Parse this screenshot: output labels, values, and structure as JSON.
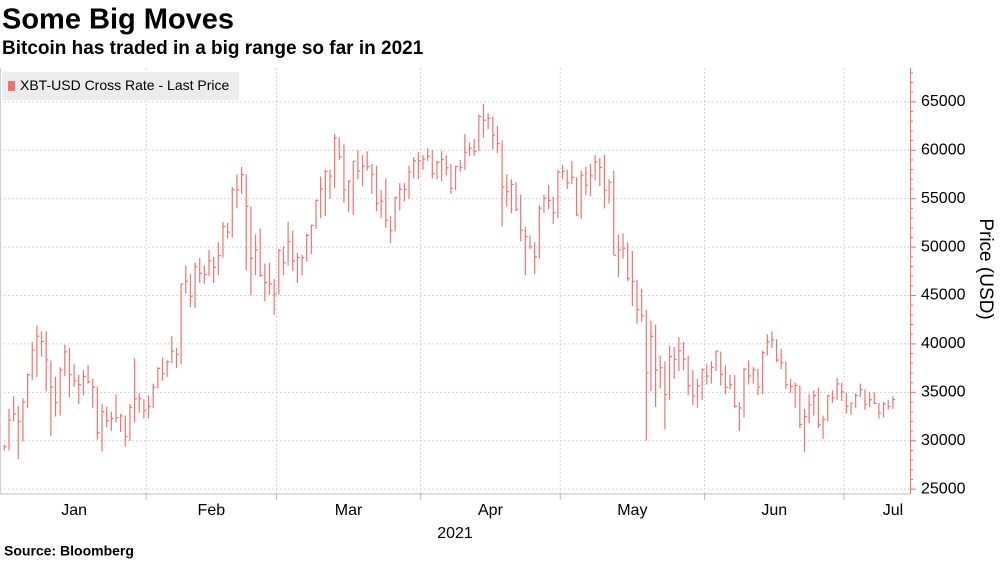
{
  "chart_data": {
    "type": "hlc",
    "title": "Some Big Moves",
    "subtitle": "Bitcoin has traded in a big range so far in 2021",
    "source": "Source: Bloomberg",
    "ylabel": "Price (USD)",
    "xlabel": "2021",
    "x_labels": [
      "Jan",
      "Feb",
      "Mar",
      "Apr",
      "May",
      "Jun",
      "Jul"
    ],
    "ylim": [
      24500,
      68500
    ],
    "yticks": [
      25000,
      30000,
      35000,
      40000,
      45000,
      50000,
      55000,
      60000,
      65000
    ],
    "grid": true,
    "legend": "top-left",
    "series": [
      {
        "name": "XBT-USD Cross Rate - Last Price",
        "color": "#ef7370",
        "high": [
          29600,
          33300,
          34600,
          33600,
          34400,
          36900,
          40200,
          41900,
          41300,
          41300,
          38300,
          36600,
          37600,
          39900,
          39600,
          37900,
          36800,
          37300,
          37800,
          36400,
          35600,
          33800,
          33500,
          33000,
          34800,
          32800,
          32600,
          33800,
          38500,
          34900,
          34300,
          34700,
          35900,
          37600,
          38600,
          38300,
          40800,
          39600,
          46200,
          48100,
          47200,
          48400,
          48900,
          48100,
          49700,
          49000,
          50500,
          52600,
          52500,
          56200,
          57500,
          58300,
          57500,
          54200,
          51300,
          51900,
          48300,
          48400,
          46700,
          49800,
          50100,
          52600,
          51700,
          49400,
          49200,
          51400,
          52300,
          54900,
          57300,
          58000,
          58000,
          61700,
          61300,
          60600,
          56900,
          58900,
          60000,
          59500,
          59900,
          58600,
          58400,
          55900,
          57100,
          53200,
          55200,
          56600,
          56600,
          58400,
          59300,
          59800,
          59500,
          60200,
          60000,
          58900,
          59900,
          59500,
          58600,
          58400,
          59000,
          61700,
          60800,
          61200,
          63700,
          64800,
          63800,
          63500,
          62500,
          61000,
          57500,
          57000,
          56700,
          55400,
          52100,
          51200,
          50500,
          54300,
          55400,
          56400,
          55200,
          58000,
          58500,
          58000,
          58900,
          57200,
          57900,
          58300,
          58600,
          59500,
          59200,
          59500,
          57000,
          57900,
          51300,
          51400,
          50500,
          49600,
          46600,
          45700,
          43500,
          42400,
          42000,
          38800,
          38200,
          39800,
          39700,
          40700,
          40200,
          38800,
          37300,
          36400,
          37500,
          37900,
          38200,
          39300,
          39200,
          37800,
          36800,
          36800,
          34000,
          37500,
          38300,
          37600,
          37400,
          39300,
          41000,
          41300,
          40500,
          39500,
          38200,
          36400,
          36000,
          35700,
          33300,
          34800,
          35200,
          35500,
          32600,
          34700,
          35200,
          36500,
          36000,
          35000,
          33900,
          34900,
          35900,
          35300,
          35000,
          35000,
          33900,
          34000,
          34200,
          34600
        ],
        "low": [
          29000,
          29000,
          32000,
          28100,
          29900,
          33400,
          36300,
          36600,
          38700,
          35100,
          30500,
          32500,
          32600,
          36700,
          34500,
          35600,
          33800,
          34700,
          35900,
          33400,
          30100,
          28900,
          31400,
          31000,
          31900,
          30900,
          29400,
          30000,
          31900,
          32900,
          32300,
          32300,
          33400,
          35400,
          36200,
          36600,
          38000,
          37500,
          37900,
          45200,
          43800,
          43700,
          46300,
          46200,
          47000,
          46300,
          47100,
          48900,
          50900,
          51000,
          54000,
          55500,
          47600,
          45000,
          47100,
          46900,
          44400,
          45100,
          43000,
          45100,
          47100,
          48100,
          47500,
          46300,
          47100,
          48500,
          49300,
          51900,
          53000,
          53200,
          55000,
          56100,
          59000,
          54600,
          53600,
          53300,
          57000,
          56300,
          57900,
          55500,
          53700,
          53000,
          52000,
          50400,
          51600,
          53800,
          54700,
          55000,
          57100,
          57000,
          58000,
          58900,
          57100,
          57000,
          56800,
          57400,
          55500,
          55900,
          57800,
          58000,
          59400,
          59400,
          59900,
          61300,
          62200,
          60100,
          59700,
          52100,
          54200,
          53500,
          53700,
          50600,
          47100,
          49800,
          47200,
          48800,
          53500,
          53900,
          52400,
          53000,
          57000,
          56000,
          56500,
          53200,
          52900,
          55400,
          55300,
          56900,
          56300,
          54000,
          54500,
          49200,
          46900,
          48800,
          46500,
          43900,
          42100,
          42300,
          30000,
          35100,
          33500,
          35400,
          31200,
          34200,
          36400,
          37200,
          37300,
          34700,
          33700,
          33400,
          34200,
          35800,
          35900,
          37200,
          35700,
          34800,
          35300,
          33400,
          31000,
          32400,
          35800,
          35900,
          34700,
          34800,
          38800,
          39600,
          38100,
          37400,
          35300,
          34900,
          33400,
          31300,
          28800,
          31800,
          32600,
          31300,
          30200,
          32000,
          33900,
          34200,
          34100,
          32800,
          32700,
          33400,
          34500,
          33200,
          33500,
          33800,
          32300,
          32400,
          33200,
          33300
        ],
        "close": [
          29374,
          32127,
          32782,
          31971,
          33992,
          36824,
          39371,
          40797,
          40254,
          38356,
          35566,
          33922,
          37316,
          39187,
          36825,
          36178,
          35792,
          36630,
          36070,
          35547,
          30825,
          33005,
          32067,
          32289,
          32366,
          32569,
          30432,
          33466,
          34316,
          34317,
          33114,
          33537,
          35510,
          37473,
          36926,
          38144,
          39266,
          38903,
          46196,
          46481,
          44919,
          47969,
          47287,
          47153,
          48577,
          47911,
          49133,
          52119,
          51552,
          55906,
          55923,
          57489,
          54208,
          48825,
          49706,
          47094,
          46340,
          46189,
          45138,
          49631,
          48378,
          50538,
          48561,
          48927,
          48912,
          51206,
          52246,
          54824,
          56008,
          57805,
          57332,
          61243,
          59302,
          55907,
          56804,
          58870,
          57858,
          58346,
          58313,
          57523,
          54529,
          54738,
          52774,
          51704,
          55137,
          55974,
          55948,
          57750,
          58918,
          58918,
          59095,
          59384,
          57604,
          58758,
          59057,
          58192,
          56048,
          58323,
          58245,
          59794,
          60205,
          59894,
          63504,
          63110,
          63314,
          61572,
          60683,
          56216,
          55724,
          56473,
          53906,
          51762,
          51093,
          50050,
          49004,
          54021,
          55033,
          54824,
          53555,
          57750,
          57828,
          56631,
          57200,
          53333,
          57424,
          56396,
          57356,
          58803,
          58232,
          55859,
          56704,
          49150,
          49716,
          49880,
          46760,
          46456,
          43537,
          42909,
          37002,
          40782,
          37304,
          37536,
          34770,
          38705,
          38402,
          39294,
          38436,
          35697,
          34616,
          35678,
          37332,
          36684,
          37576,
          39248,
          36856,
          35520,
          35796,
          33552,
          33380,
          37389,
          36702,
          37334,
          35552,
          39097,
          40219,
          40406,
          38347,
          38053,
          35787,
          35615,
          35698,
          31676,
          32505,
          33723,
          34662,
          31637,
          32187,
          34649,
          34434,
          35867,
          35041,
          33572,
          33897,
          34668,
          35287,
          33746,
          34235,
          33855,
          32877,
          33799,
          33520,
          34258
        ]
      }
    ]
  }
}
